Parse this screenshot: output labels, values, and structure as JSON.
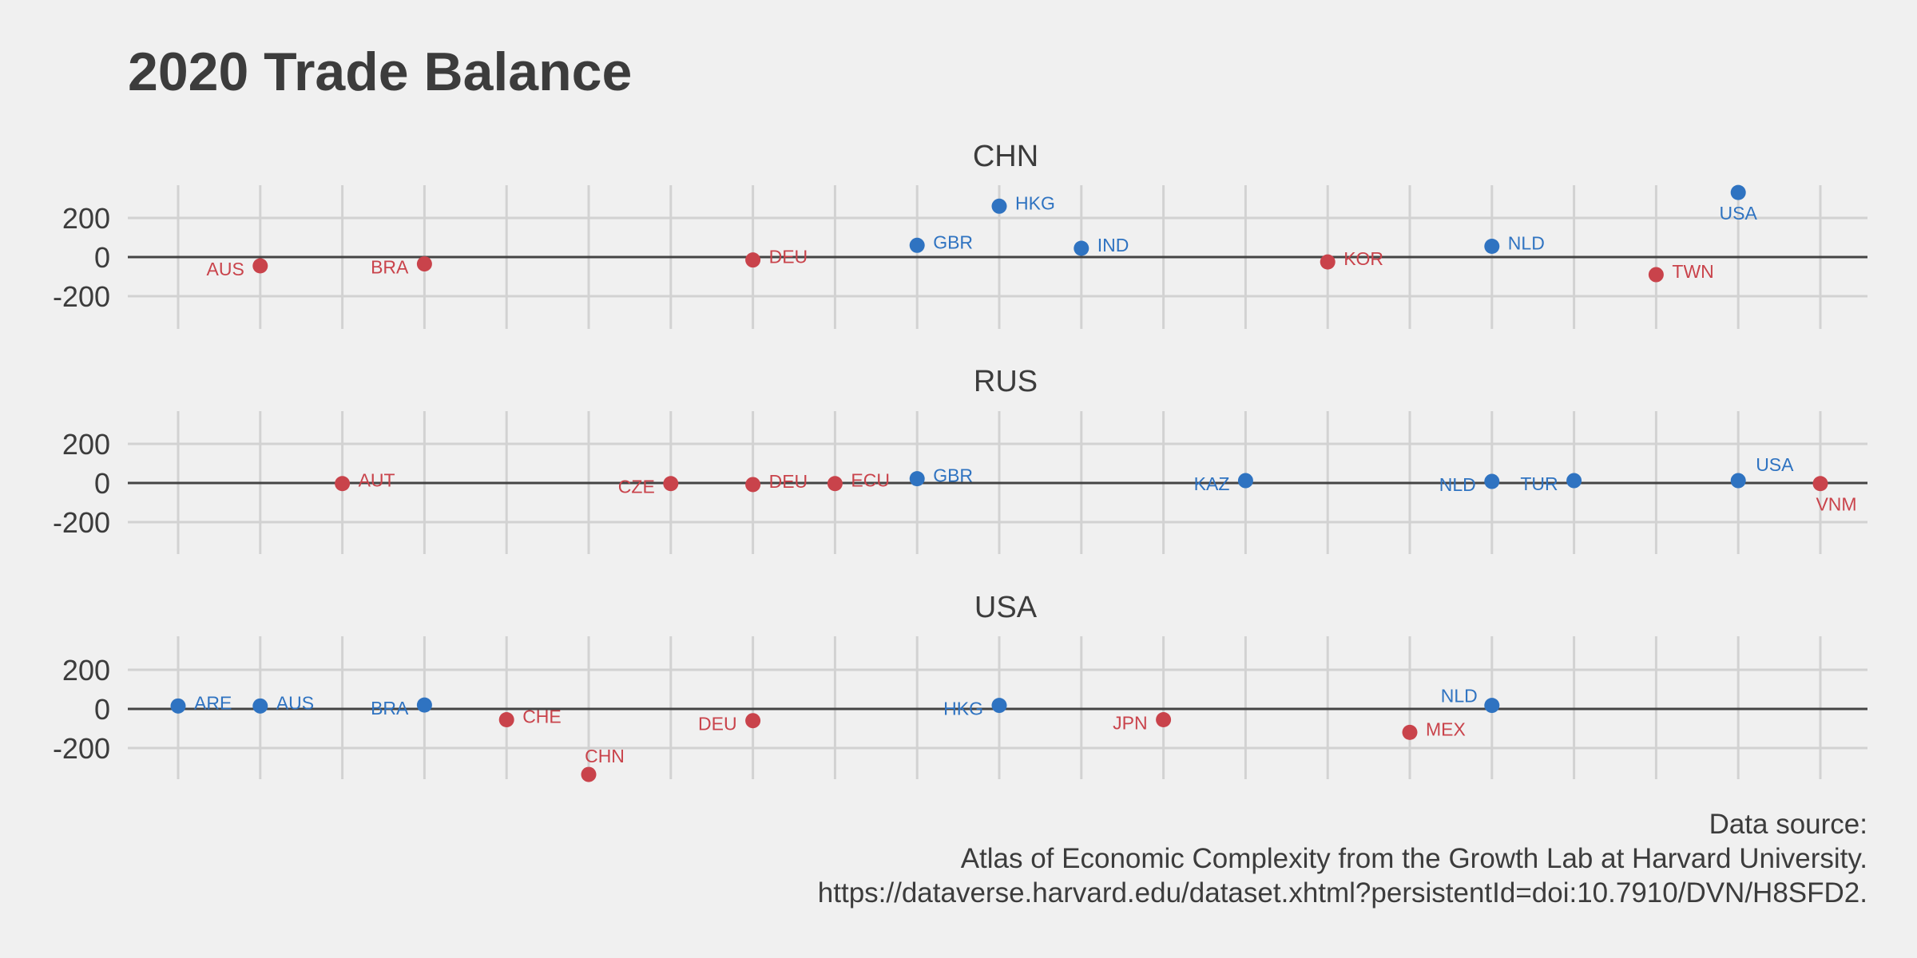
{
  "title": "2020 Trade Balance",
  "caption": [
    "Data source:",
    "Atlas of Economic Complexity from the Growth Lab at Harvard University.",
    "https://dataverse.harvard.edu/dataset.xhtml?persistentId=doi:10.7910/DVN/H8SFD2."
  ],
  "colors": {
    "positive": "#2f73c1",
    "negative": "#c9434b",
    "grid": "#d2d2d2",
    "zero_line": "#444444",
    "background": "#f0f0f0"
  },
  "chart_data": {
    "type": "scatter",
    "x_categories": [
      "ARE",
      "AUS",
      "AUT",
      "BRA",
      "CHE",
      "CHN",
      "CZE",
      "DEU",
      "ECU",
      "GBR",
      "HKG",
      "IND",
      "JPN",
      "KAZ",
      "KOR",
      "MEX",
      "NLD",
      "TUR",
      "TWN",
      "USA",
      "VNM"
    ],
    "y_ticks": [
      -200,
      0,
      200
    ],
    "ylim": [
      -340,
      340
    ],
    "x_tick_labels_visible": false,
    "grid": true,
    "facets": [
      {
        "title": "CHN",
        "points": [
          {
            "x": "AUS",
            "y": -45,
            "label": "AUS",
            "label_side": "left"
          },
          {
            "x": "BRA",
            "y": -35,
            "label": "BRA",
            "label_side": "left"
          },
          {
            "x": "DEU",
            "y": -15,
            "label": "DEU",
            "label_side": "right"
          },
          {
            "x": "GBR",
            "y": 60,
            "label": "GBR",
            "label_side": "right"
          },
          {
            "x": "HKG",
            "y": 260,
            "label": "HKG",
            "label_side": "right"
          },
          {
            "x": "IND",
            "y": 45,
            "label": "IND",
            "label_side": "right"
          },
          {
            "x": "KOR",
            "y": -25,
            "label": "KOR",
            "label_side": "right"
          },
          {
            "x": "NLD",
            "y": 55,
            "label": "NLD",
            "label_side": "right"
          },
          {
            "x": "TWN",
            "y": -90,
            "label": "TWN",
            "label_side": "right"
          },
          {
            "x": "USA",
            "y": 330,
            "label": "USA",
            "label_side": "below"
          }
        ]
      },
      {
        "title": "RUS",
        "points": [
          {
            "x": "AUT",
            "y": -3,
            "label": "AUT",
            "label_side": "right"
          },
          {
            "x": "CZE",
            "y": -3,
            "label": "CZE",
            "label_side": "left"
          },
          {
            "x": "DEU",
            "y": -8,
            "label": "DEU",
            "label_side": "right"
          },
          {
            "x": "ECU",
            "y": -3,
            "label": "ECU",
            "label_side": "right"
          },
          {
            "x": "GBR",
            "y": 22,
            "label": "GBR",
            "label_side": "right"
          },
          {
            "x": "KAZ",
            "y": 12,
            "label": "KAZ",
            "label_side": "left"
          },
          {
            "x": "NLD",
            "y": 8,
            "label": "NLD",
            "label_side": "left"
          },
          {
            "x": "TUR",
            "y": 12,
            "label": "TUR",
            "label_side": "left"
          },
          {
            "x": "USA",
            "y": 12,
            "label": "USA",
            "label_side": "above-right"
          },
          {
            "x": "VNM",
            "y": -3,
            "label": "VNM",
            "label_side": "below"
          }
        ]
      },
      {
        "title": "USA",
        "points": [
          {
            "x": "ARE",
            "y": 15,
            "label": "ARE",
            "label_side": "right"
          },
          {
            "x": "AUS",
            "y": 15,
            "label": "AUS",
            "label_side": "right"
          },
          {
            "x": "BRA",
            "y": 20,
            "label": "BRA",
            "label_side": "left"
          },
          {
            "x": "CHE",
            "y": -55,
            "label": "CHE",
            "label_side": "right"
          },
          {
            "x": "CHN",
            "y": -335,
            "label": "CHN",
            "label_side": "above"
          },
          {
            "x": "DEU",
            "y": -60,
            "label": "DEU",
            "label_side": "left"
          },
          {
            "x": "HKG",
            "y": 18,
            "label": "HKG",
            "label_side": "left"
          },
          {
            "x": "JPN",
            "y": -55,
            "label": "JPN",
            "label_side": "left"
          },
          {
            "x": "MEX",
            "y": -120,
            "label": "MEX",
            "label_side": "right"
          },
          {
            "x": "NLD",
            "y": 18,
            "label": "NLD",
            "label_side": "above-left"
          }
        ]
      }
    ]
  }
}
